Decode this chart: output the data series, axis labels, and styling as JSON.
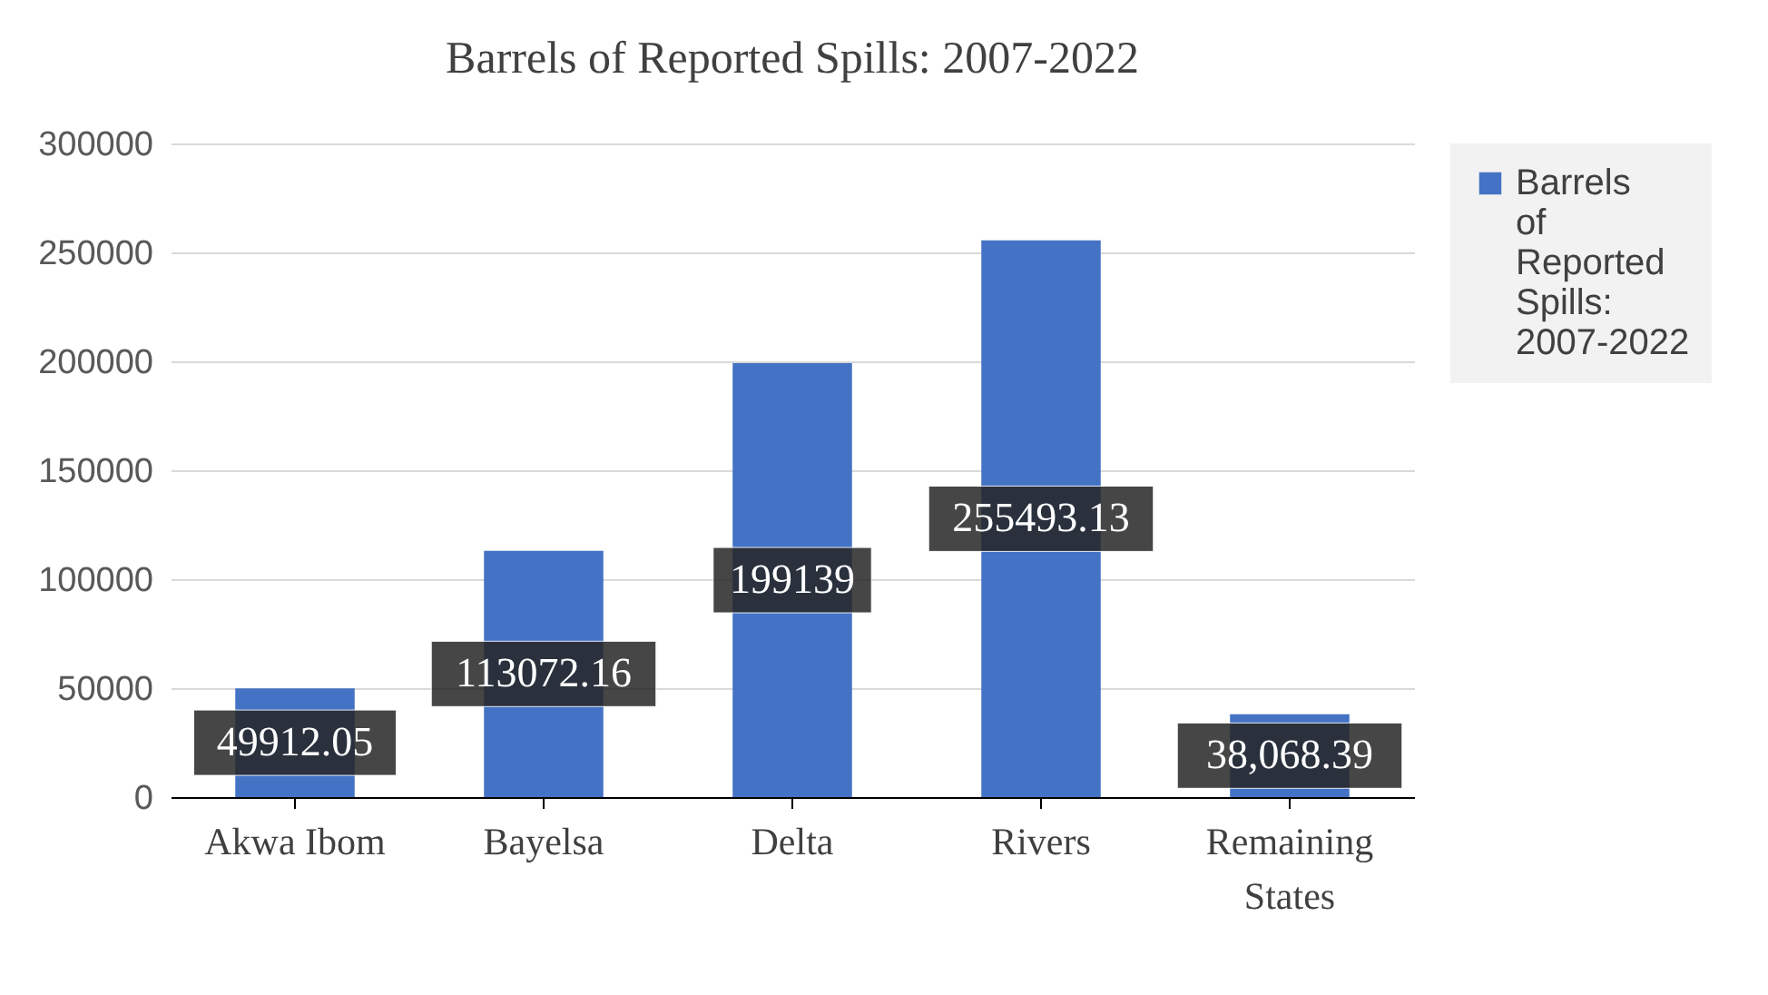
{
  "chart_data": {
    "type": "bar",
    "title": "Barrels of Reported Spills: 2007-2022",
    "categories": [
      "Akwa Ibom",
      "Bayelsa",
      "Delta",
      "Rivers",
      "Remaining States"
    ],
    "series": [
      {
        "name": "Barrels of Reported Spills: 2007-2022",
        "color": "#4472c4",
        "values": [
          49912.05,
          113072.16,
          199139,
          255493.13,
          38068.39
        ],
        "value_labels": [
          "49912.05",
          "113072.16",
          "199139",
          "255493.13",
          "38,068.39"
        ]
      }
    ],
    "ylim": [
      0,
      300000
    ],
    "yticks": [
      0,
      50000,
      100000,
      150000,
      200000,
      250000,
      300000
    ],
    "grid": "y",
    "legend": "right"
  }
}
